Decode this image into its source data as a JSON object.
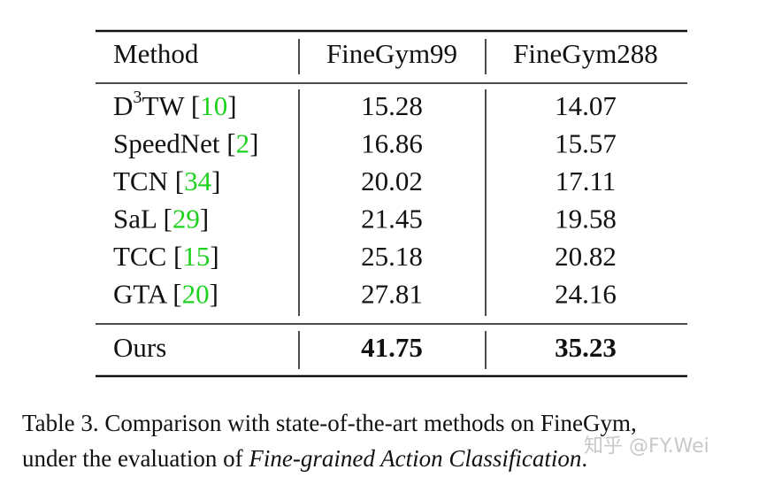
{
  "table": {
    "header": [
      "Method",
      "FineGym99",
      "FineGym288"
    ],
    "rows": [
      {
        "method": [
          {
            "text": "D"
          },
          {
            "text": "3",
            "sup": true
          },
          {
            "text": "TW ["
          },
          {
            "text": "10",
            "link": true
          },
          {
            "text": "]"
          }
        ],
        "values": [
          15.28,
          14.07
        ]
      },
      {
        "method": [
          {
            "text": "SpeedNet ["
          },
          {
            "text": "2",
            "link": true
          },
          {
            "text": "]"
          }
        ],
        "values": [
          16.86,
          15.57
        ]
      },
      {
        "method": [
          {
            "text": "TCN ["
          },
          {
            "text": "34",
            "link": true
          },
          {
            "text": "]"
          }
        ],
        "values": [
          20.02,
          17.11
        ]
      },
      {
        "method": [
          {
            "text": "SaL ["
          },
          {
            "text": "29",
            "link": true
          },
          {
            "text": "]"
          }
        ],
        "values": [
          21.45,
          19.58
        ]
      },
      {
        "method": [
          {
            "text": "TCC ["
          },
          {
            "text": "15",
            "link": true
          },
          {
            "text": "]"
          }
        ],
        "values": [
          25.18,
          20.82
        ]
      },
      {
        "method": [
          {
            "text": "GTA ["
          },
          {
            "text": "20",
            "link": true
          },
          {
            "text": "]"
          }
        ],
        "values": [
          27.81,
          24.16
        ]
      }
    ],
    "final_row": {
      "method": [
        {
          "text": "Ours"
        }
      ],
      "values": [
        41.75,
        35.23
      ],
      "bold": true
    },
    "link_color": "#1fd11f"
  },
  "caption": {
    "lines": [
      [
        {
          "text": "Table 3.  Comparison with state-of-the-art methods on FineGym,"
        }
      ],
      [
        {
          "text": "under the evaluation of "
        },
        {
          "text": "Fine-grained Action Classification",
          "italic": true
        },
        {
          "text": "."
        }
      ]
    ]
  },
  "watermark": "知乎 @FY.Wei"
}
